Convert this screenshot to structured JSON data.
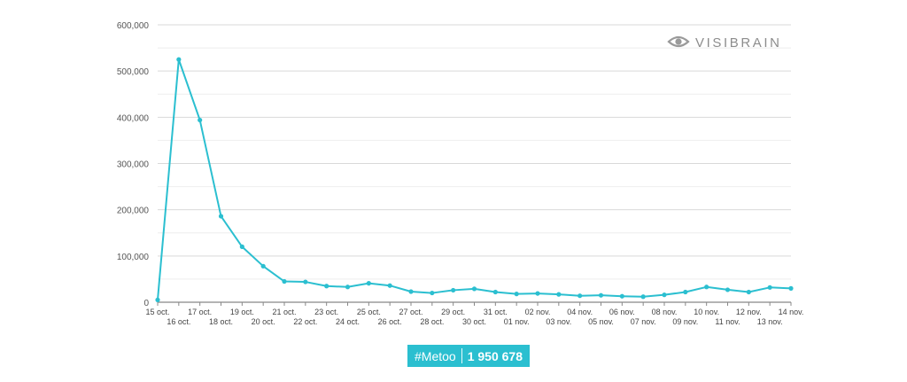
{
  "brand": {
    "logo_text": "VISIBRAIN",
    "logo_icon": "eye-icon",
    "logo_color": "#9a9a9a"
  },
  "badge": {
    "hashtag": "#Metoo",
    "total": "1 950 678",
    "color": "#2bbfd0"
  },
  "chart_data": {
    "type": "line",
    "title": "",
    "xlabel": "",
    "ylabel": "",
    "ylim": [
      0,
      600000
    ],
    "yticks": [
      0,
      100000,
      200000,
      300000,
      400000,
      500000,
      600000
    ],
    "ytick_labels": [
      "0",
      "100,000",
      "200,000",
      "300,000",
      "400,000",
      "500,000",
      "600,000"
    ],
    "grid": true,
    "legend": "none",
    "line_color": "#2bbfd0",
    "categories": [
      "15 oct.",
      "16 oct.",
      "17 oct.",
      "18 oct.",
      "19 oct.",
      "20 oct.",
      "21 oct.",
      "22 oct.",
      "23 oct.",
      "24 oct.",
      "25 oct.",
      "26 oct.",
      "27 oct.",
      "28 oct.",
      "29 oct.",
      "30 oct.",
      "31 oct.",
      "01 nov.",
      "02 nov.",
      "03 nov.",
      "04 nov.",
      "05 nov.",
      "06 nov.",
      "07 nov.",
      "08 nov.",
      "09 nov.",
      "10 nov.",
      "11 nov.",
      "12 nov.",
      "13 nov.",
      "14 nov."
    ],
    "series": [
      {
        "values": [
          5000,
          525000,
          394000,
          186000,
          120000,
          78000,
          45000,
          44000,
          35000,
          33000,
          41000,
          36000,
          23000,
          20000,
          26000,
          29000,
          22000,
          18000,
          19000,
          17000,
          14000,
          15000,
          13000,
          12000,
          16000,
          22000,
          33000,
          27000,
          22000,
          32000,
          30000
        ]
      }
    ]
  }
}
